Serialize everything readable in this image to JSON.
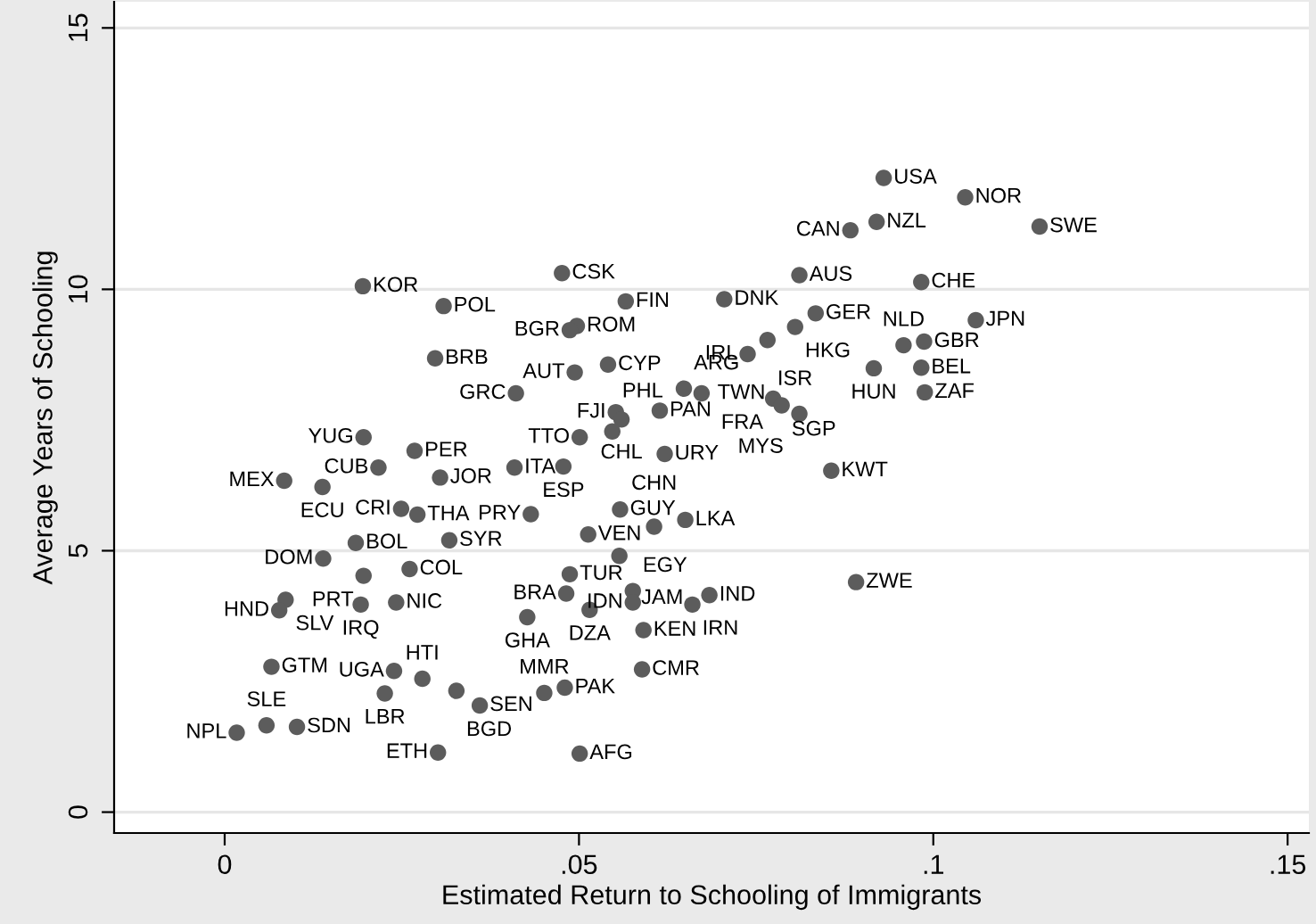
{
  "chart_data": {
    "type": "scatter",
    "xlabel": "Estimated Return to Schooling of Immigrants",
    "ylabel": "Average Years of Schooling",
    "xlim": [
      -0.0156,
      0.153
    ],
    "ylim": [
      -0.4,
      15.5
    ],
    "xticks": [
      {
        "value": 0,
        "label": "0"
      },
      {
        "value": 0.05,
        "label": ".05"
      },
      {
        "value": 0.1,
        "label": ".1"
      },
      {
        "value": 0.15,
        "label": ".15"
      }
    ],
    "yticks": [
      0,
      5,
      10,
      15
    ],
    "grid": "y",
    "marker": "circle",
    "series": [
      {
        "color": "#5c5c5c",
        "x": [
          0.0195,
          0.0309,
          0.0476,
          0.0566,
          0.0497,
          0.0487,
          0.0297,
          0.0541,
          0.0494,
          0.0411,
          0.0552,
          0.056,
          0.0614,
          0.0547,
          0.0501,
          0.0196,
          0.0268,
          0.0217,
          0.0304,
          0.0084,
          0.0138,
          0.0409,
          0.0478,
          0.0621,
          0.093,
          0.1045,
          0.092,
          0.0883,
          0.115,
          0.0811,
          0.0983,
          0.0705,
          0.0834,
          0.0805,
          0.106,
          0.0766,
          0.0958,
          0.0987,
          0.0738,
          0.0916,
          0.0983,
          0.0988,
          0.0648,
          0.0673,
          0.0774,
          0.0786,
          0.0811,
          0.0856,
          0.0249,
          0.0272,
          0.0432,
          0.0558,
          0.0513,
          0.0185,
          0.0317,
          0.0139,
          0.0261,
          0.0196,
          0.0557,
          0.0487,
          0.0086,
          0.0077,
          0.0192,
          0.0242,
          0.0482,
          0.0427,
          0.0515,
          0.0576,
          0.0591,
          0.0066,
          0.0239,
          0.0279,
          0.0226,
          0.0327,
          0.036,
          0.0451,
          0.048,
          0.0589,
          0.0017,
          0.0059,
          0.0102,
          0.0301,
          0.0501,
          0.0606,
          0.065,
          0.0576,
          0.0684,
          0.066,
          0.0891
        ],
        "values": [
          10.06,
          9.68,
          10.31,
          9.77,
          9.3,
          9.22,
          8.68,
          8.56,
          8.41,
          8.01,
          7.65,
          7.51,
          7.68,
          7.28,
          7.17,
          7.17,
          6.91,
          6.59,
          6.4,
          6.34,
          6.22,
          6.59,
          6.61,
          6.85,
          12.13,
          11.76,
          11.29,
          11.13,
          11.2,
          10.27,
          10.14,
          9.81,
          9.54,
          9.28,
          9.41,
          9.03,
          8.93,
          9.0,
          8.76,
          8.49,
          8.5,
          8.03,
          8.1,
          8.01,
          7.91,
          7.78,
          7.62,
          6.53,
          5.8,
          5.69,
          5.7,
          5.79,
          5.31,
          5.15,
          5.2,
          4.85,
          4.65,
          4.52,
          4.9,
          4.55,
          4.06,
          3.86,
          3.97,
          4.01,
          4.18,
          3.73,
          3.87,
          4.23,
          3.48,
          2.78,
          2.7,
          2.55,
          2.27,
          2.32,
          2.04,
          2.28,
          2.38,
          2.73,
          1.52,
          1.66,
          1.63,
          1.14,
          1.12,
          5.46,
          5.59,
          4.01,
          4.15,
          3.97,
          4.4
        ],
        "value_labels": [
          "KOR",
          "POL",
          "CSK",
          "FIN",
          "ROM",
          "BGR",
          "BRB",
          "CYP",
          "AUT",
          "GRC",
          "FJI",
          "CHL",
          "PAN",
          "PHL",
          "TTO",
          "YUG",
          "PER",
          "CUB",
          "JOR",
          "MEX",
          "ECU",
          "ITA",
          "ESP",
          "URY",
          "USA",
          "NOR",
          "NZL",
          "CAN",
          "SWE",
          "AUS",
          "CHE",
          "DNK",
          "GER",
          "HKG",
          "JPN",
          "ISR",
          "NLD",
          "GBR",
          "IRL",
          "HUN",
          "BEL",
          "ZAF",
          "ARG",
          "TWN",
          "FRA",
          "SGP",
          "MYS",
          "KWT",
          "CRI",
          "THA",
          "PRY",
          "GUY",
          "VEN",
          "BOL",
          "SYR",
          "DOM",
          "COL",
          "PRT",
          "JAM",
          "TUR",
          "SLV",
          "HND",
          "IRQ",
          "NIC",
          "BRA",
          "GHA",
          "DZA",
          "EGY",
          "KEN",
          "GTM",
          "UGA",
          "HTI",
          "LBR",
          "BGD",
          "SEN",
          "MMR",
          "PAK",
          "CMR",
          "NPL",
          "SLE",
          "SDN",
          "ETH",
          "AFG",
          "CHN",
          "LKA",
          "IDN",
          "IND",
          "IRN",
          "ZWE"
        ]
      }
    ]
  }
}
